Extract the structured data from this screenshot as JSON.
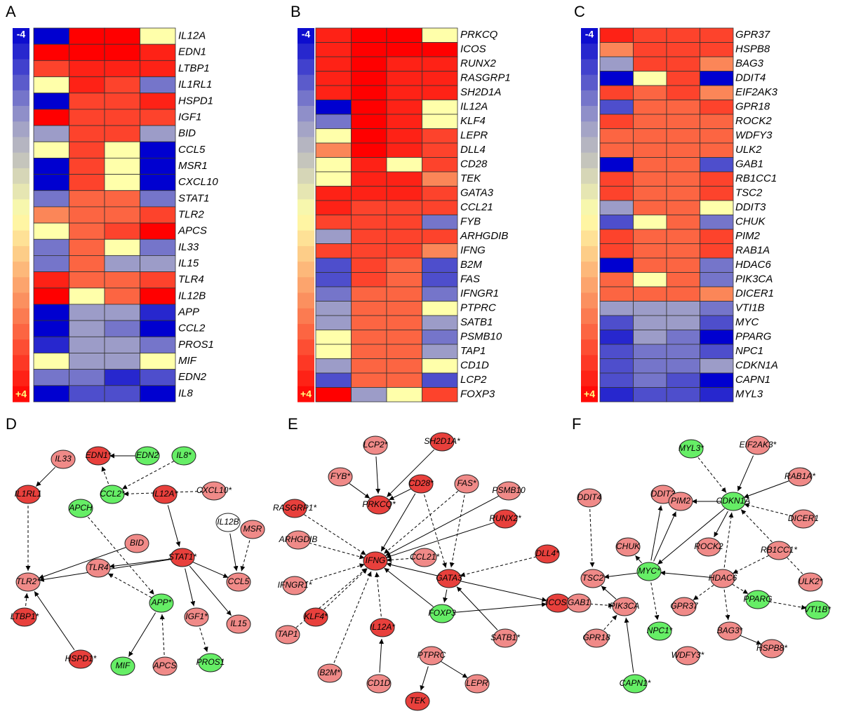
{
  "chart_data": [
    {
      "type": "heatmap",
      "label": "A",
      "zlim": [
        -4,
        4
      ],
      "zticks": [
        -4,
        {
          "value": 4,
          "label": "+4"
        }
      ],
      "colorscale": [
        "#0000d0",
        "#9c9cc8",
        "#ffffaa",
        "#fb8658",
        "#ff0000"
      ],
      "categories": [
        "IL12A",
        "EDN1",
        "LTBP1",
        "IL1RL1",
        "HSPD1",
        "IGF1",
        "BID",
        "CCL5",
        "MSR1",
        "CXCL10",
        "STAT1",
        "TLR2",
        "APCS",
        "IL33",
        "IL15",
        "TLR4",
        "IL12B",
        "APP",
        "CCL2",
        "PROS1",
        "MIF",
        "EDN2",
        "IL8"
      ],
      "values": [
        [
          -4,
          4,
          4,
          0
        ],
        [
          4,
          4,
          4,
          3.5
        ],
        [
          3,
          3.5,
          3.5,
          3.5
        ],
        [
          0,
          3.5,
          3,
          -2.5
        ],
        [
          -4,
          3,
          3,
          3.5
        ],
        [
          4,
          3,
          3,
          3
        ],
        [
          -2,
          3,
          3,
          -2
        ],
        [
          0,
          3,
          0,
          -4
        ],
        [
          -4,
          3,
          0,
          -4
        ],
        [
          -4,
          3,
          0,
          -4
        ],
        [
          -2.5,
          2.5,
          2.5,
          -2.5
        ],
        [
          2,
          2.5,
          2.5,
          3
        ],
        [
          0,
          2.5,
          3,
          4
        ],
        [
          -2.5,
          2.5,
          0,
          -2.5
        ],
        [
          -2.5,
          2.5,
          -2,
          -2
        ],
        [
          3.5,
          2.5,
          2.5,
          3
        ],
        [
          4,
          0,
          2.5,
          4
        ],
        [
          -4,
          -2,
          -2,
          -3.5
        ],
        [
          -4,
          -2,
          -2.5,
          -4
        ],
        [
          -3.5,
          -2,
          -2,
          -2.5
        ],
        [
          0,
          -2,
          -2,
          0
        ],
        [
          -2.5,
          -2.5,
          -3.5,
          -3
        ],
        [
          -4,
          -3,
          -3,
          -4
        ]
      ]
    },
    {
      "type": "heatmap",
      "label": "B",
      "zlim": [
        -4,
        4
      ],
      "zticks": [
        -4,
        {
          "value": 4,
          "label": "+4"
        }
      ],
      "colorscale": [
        "#0000d0",
        "#9c9cc8",
        "#ffffaa",
        "#fb8658",
        "#ff0000"
      ],
      "categories": [
        "PRKCQ",
        "ICOS",
        "RUNX2",
        "RASGRP1",
        "SH2D1A",
        "IL12A",
        "KLF4",
        "LEPR",
        "DLL4",
        "CD28",
        "TEK",
        "GATA3",
        "CCL21",
        "FYB",
        "ARHGDIB",
        "IFNG",
        "B2M",
        "FAS",
        "IFNGR1",
        "PTPRC",
        "SATB1",
        "PSMB10",
        "TAP1",
        "CD1D",
        "LCP2",
        "FOXP3"
      ],
      "values": [
        [
          3.5,
          4,
          4,
          0
        ],
        [
          3.5,
          4,
          4,
          4
        ],
        [
          3.5,
          4,
          3.5,
          3.5
        ],
        [
          3.5,
          4,
          3.5,
          3.5
        ],
        [
          3.5,
          4,
          3.5,
          3.5
        ],
        [
          -4,
          4,
          3.5,
          0
        ],
        [
          -2.5,
          4,
          3.5,
          0
        ],
        [
          0,
          4,
          3.5,
          3
        ],
        [
          2,
          4,
          3.5,
          3
        ],
        [
          0,
          3.5,
          0,
          3
        ],
        [
          0,
          3.5,
          3.5,
          2
        ],
        [
          3.5,
          3.5,
          3.5,
          3
        ],
        [
          3.5,
          3,
          3,
          3
        ],
        [
          3,
          3,
          3,
          -2.5
        ],
        [
          -2,
          3,
          3,
          3
        ],
        [
          3,
          3,
          3,
          2
        ],
        [
          -3,
          3,
          2.5,
          -3
        ],
        [
          -3,
          3,
          2.5,
          -3
        ],
        [
          -2.5,
          2.5,
          2.5,
          -2.5
        ],
        [
          -2,
          2.5,
          2.5,
          0
        ],
        [
          -2,
          2.5,
          2.5,
          -2
        ],
        [
          0,
          2.5,
          2.5,
          -2.5
        ],
        [
          0,
          2.5,
          2.5,
          -2
        ],
        [
          -2,
          2.5,
          2.5,
          0
        ],
        [
          -3,
          2.5,
          2.5,
          -3
        ],
        [
          4,
          -2,
          0,
          3
        ]
      ]
    },
    {
      "type": "heatmap",
      "label": "C",
      "zlim": [
        -4,
        4
      ],
      "zticks": [
        -4,
        {
          "value": 4,
          "label": "+4"
        }
      ],
      "colorscale": [
        "#0000d0",
        "#9c9cc8",
        "#ffffaa",
        "#fb8658",
        "#ff0000"
      ],
      "categories": [
        "GPR37",
        "HSPB8",
        "BAG3",
        "DDIT4",
        "EIF2AK3",
        "GPR18",
        "ROCK2",
        "WDFY3",
        "ULK2",
        "GAB1",
        "RB1CC1",
        "TSC2",
        "DDIT3",
        "CHUK",
        "PIM2",
        "RAB1A",
        "HDAC6",
        "PIK3CA",
        "DICER1",
        "VTI1B",
        "MYC",
        "PPARG",
        "NPC1",
        "CDKN1A",
        "CAPN1",
        "MYL3"
      ],
      "values": [
        [
          3.5,
          3,
          3,
          3
        ],
        [
          2,
          3,
          3,
          3
        ],
        [
          -2,
          3,
          3,
          2
        ],
        [
          -4,
          0,
          3,
          -4
        ],
        [
          3,
          2.5,
          3,
          2
        ],
        [
          -3,
          2.5,
          2.5,
          3
        ],
        [
          3,
          2.5,
          2.5,
          2.5
        ],
        [
          2.5,
          2.5,
          2.5,
          2.5
        ],
        [
          2.5,
          2.5,
          2.5,
          2.5
        ],
        [
          -4,
          2.5,
          2.5,
          -3
        ],
        [
          3,
          2.5,
          2.5,
          3
        ],
        [
          3,
          2.5,
          2.5,
          3
        ],
        [
          -2,
          2.5,
          2.5,
          0
        ],
        [
          -3,
          0,
          2.5,
          -2.5
        ],
        [
          3,
          2.5,
          2.5,
          3
        ],
        [
          3,
          2.5,
          2.5,
          3
        ],
        [
          -4,
          2.5,
          2.5,
          -2.5
        ],
        [
          2.5,
          0,
          2.5,
          -2.5
        ],
        [
          2.5,
          2.5,
          2.5,
          2
        ],
        [
          -2,
          -2,
          -2,
          -2.5
        ],
        [
          -3,
          -2,
          -2,
          -3
        ],
        [
          -3.5,
          -2,
          -2.5,
          -4
        ],
        [
          -3,
          -2.5,
          -2.5,
          -3
        ],
        [
          -3,
          -2.5,
          -2.5,
          -2
        ],
        [
          -3,
          -2.5,
          -3,
          -4
        ],
        [
          -3.5,
          -3,
          -3,
          -3.5
        ]
      ]
    }
  ],
  "networks": [
    {
      "label": "D",
      "nodes": [
        {
          "label": "EDN1*",
          "color": "#e8403c"
        },
        {
          "label": "EDN2",
          "color": "#66ee66"
        },
        {
          "label": "IL8*",
          "color": "#66ee66"
        },
        {
          "label": "IL33",
          "color": "#f08a88"
        },
        {
          "label": "IL1RL1",
          "color": "#e8403c"
        },
        {
          "label": "CCL2*",
          "color": "#66ee66"
        },
        {
          "label": "IL12A*",
          "color": "#e8403c"
        },
        {
          "label": "CXCL10*",
          "color": "#f08a88"
        },
        {
          "label": "APCH",
          "color": "#66ee66"
        },
        {
          "label": "IL12B",
          "color": "#ffffff"
        },
        {
          "label": "MSR",
          "color": "#f08a88"
        },
        {
          "label": "BID",
          "color": "#f08a88"
        },
        {
          "label": "STAT1*",
          "color": "#e8403c"
        },
        {
          "label": "TLR2*",
          "color": "#f08a88"
        },
        {
          "label": "TLR4",
          "color": "#f08a88"
        },
        {
          "label": "CCL5",
          "color": "#f08a88"
        },
        {
          "label": "APP*",
          "color": "#66ee66"
        },
        {
          "label": "IGF1*",
          "color": "#f08a88"
        },
        {
          "label": "IL15",
          "color": "#f08a88"
        },
        {
          "label": "LTBP1*",
          "color": "#e8403c"
        },
        {
          "label": "HSPD1*",
          "color": "#e8403c"
        },
        {
          "label": "MIF",
          "color": "#66ee66"
        },
        {
          "label": "APCS",
          "color": "#f08a88"
        },
        {
          "label": "PROS1",
          "color": "#66ee66"
        }
      ]
    },
    {
      "label": "E",
      "nodes": [
        {
          "label": "LCP2*",
          "color": "#f08a88"
        },
        {
          "label": "SH2D1A*",
          "color": "#e8403c"
        },
        {
          "label": "FYB*",
          "color": "#f08a88"
        },
        {
          "label": "CD28*",
          "color": "#e8403c"
        },
        {
          "label": "FAS*",
          "color": "#f08a88"
        },
        {
          "label": "PSMB10",
          "color": "#f08a88"
        },
        {
          "label": "PRKCQ*",
          "color": "#e8403c"
        },
        {
          "label": "RASGRP1*",
          "color": "#e8403c"
        },
        {
          "label": "RUNX2*",
          "color": "#e8403c"
        },
        {
          "label": "ARHGDIB",
          "color": "#f08a88"
        },
        {
          "label": "CCL21*",
          "color": "#f08a88"
        },
        {
          "label": "DLL4*",
          "color": "#e8403c"
        },
        {
          "label": "IFNG",
          "color": "#e8403c"
        },
        {
          "label": "GATA3",
          "color": "#e8403c"
        },
        {
          "label": "IFNGR1*",
          "color": "#f08a88"
        },
        {
          "label": "ICOS*",
          "color": "#e8403c"
        },
        {
          "label": "KLF4*",
          "color": "#e8403c"
        },
        {
          "label": "FOXP3",
          "color": "#66ee66"
        },
        {
          "label": "SATB1*",
          "color": "#f08a88"
        },
        {
          "label": "TAP1",
          "color": "#f08a88"
        },
        {
          "label": "IL12A*",
          "color": "#e8403c"
        },
        {
          "label": "PTPRC",
          "color": "#f08a88"
        },
        {
          "label": "B2M*",
          "color": "#f08a88"
        },
        {
          "label": "CD1D",
          "color": "#f08a88"
        },
        {
          "label": "LEPR",
          "color": "#f08a88"
        },
        {
          "label": "TEK",
          "color": "#e8403c"
        }
      ]
    },
    {
      "label": "F",
      "nodes": [
        {
          "label": "MYL3*",
          "color": "#66ee66"
        },
        {
          "label": "EIF2AK3*",
          "color": "#f08a88"
        },
        {
          "label": "DDIT3",
          "color": "#f08a88"
        },
        {
          "label": "RAB1A*",
          "color": "#f08a88"
        },
        {
          "label": "DDIT4",
          "color": "#f08a88"
        },
        {
          "label": "PIM2",
          "color": "#f08a88"
        },
        {
          "label": "CDKN1A",
          "color": "#66ee66"
        },
        {
          "label": "DICER1",
          "color": "#f08a88"
        },
        {
          "label": "CHUK",
          "color": "#f08a88"
        },
        {
          "label": "ROCK2",
          "color": "#f08a88"
        },
        {
          "label": "RB1CC1*",
          "color": "#f08a88"
        },
        {
          "label": "TSC2",
          "color": "#f08a88"
        },
        {
          "label": "MYC*",
          "color": "#66ee66"
        },
        {
          "label": "HDAC6",
          "color": "#f08a88"
        },
        {
          "label": "ULK2*",
          "color": "#f08a88"
        },
        {
          "label": "GAB1",
          "color": "#f08a88"
        },
        {
          "label": "PIK3CA",
          "color": "#f08a88"
        },
        {
          "label": "GPR37",
          "color": "#f08a88"
        },
        {
          "label": "PPARG",
          "color": "#66ee66"
        },
        {
          "label": "VTI1B*",
          "color": "#66ee66"
        },
        {
          "label": "GPR18",
          "color": "#f08a88"
        },
        {
          "label": "NPC1*",
          "color": "#66ee66"
        },
        {
          "label": "BAG3*",
          "color": "#f08a88"
        },
        {
          "label": "WDFY3*",
          "color": "#f08a88"
        },
        {
          "label": "HSPB8*",
          "color": "#f08a88"
        },
        {
          "label": "CAPN1*",
          "color": "#66ee66"
        }
      ]
    }
  ]
}
